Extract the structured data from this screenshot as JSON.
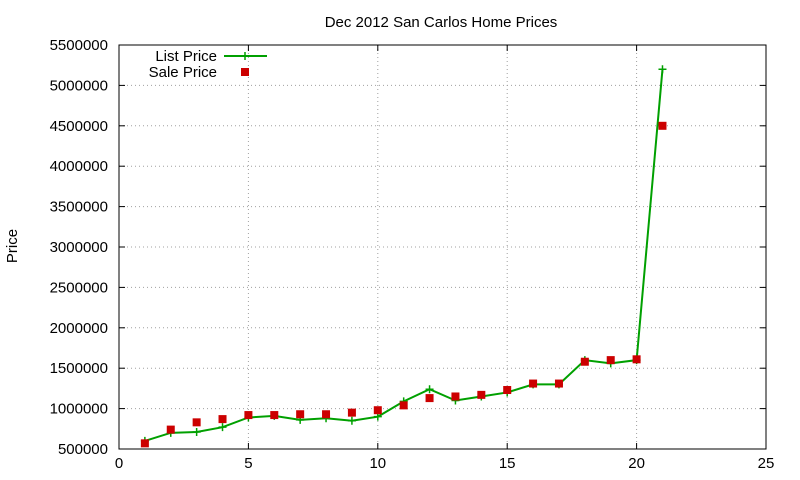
{
  "chart_data": {
    "type": "line",
    "title": "Dec 2012 San Carlos Home Prices",
    "xlabel": "",
    "ylabel": "Price",
    "xlim": [
      0,
      25
    ],
    "ylim": [
      500000,
      5500000
    ],
    "x_ticks": [
      "0",
      "5",
      "10",
      "15",
      "20",
      "25"
    ],
    "y_ticks": [
      "500000",
      "1000000",
      "1500000",
      "2000000",
      "2500000",
      "3000000",
      "3500000",
      "4000000",
      "4500000",
      "5000000",
      "5500000"
    ],
    "grid": true,
    "legend_position": "top-left",
    "series": [
      {
        "name": "List Price",
        "style": "line+cross",
        "color": "#00a000",
        "x": [
          1,
          2,
          3,
          4,
          5,
          6,
          7,
          8,
          9,
          10,
          11,
          12,
          13,
          14,
          15,
          16,
          17,
          18,
          19,
          20,
          21
        ],
        "y": [
          600000,
          700000,
          710000,
          770000,
          890000,
          910000,
          860000,
          880000,
          850000,
          900000,
          1090000,
          1240000,
          1100000,
          1150000,
          1200000,
          1300000,
          1300000,
          1600000,
          1560000,
          1600000,
          5200000
        ]
      },
      {
        "name": "Sale Price",
        "style": "square",
        "color": "#cc0000",
        "x": [
          1,
          2,
          3,
          4,
          5,
          6,
          7,
          8,
          9,
          10,
          11,
          12,
          13,
          14,
          15,
          16,
          17,
          18,
          19,
          20,
          21
        ],
        "y": [
          570000,
          740000,
          830000,
          870000,
          920000,
          920000,
          930000,
          930000,
          950000,
          980000,
          1040000,
          1130000,
          1150000,
          1170000,
          1230000,
          1310000,
          1310000,
          1580000,
          1600000,
          1610000,
          4500000
        ]
      }
    ]
  }
}
